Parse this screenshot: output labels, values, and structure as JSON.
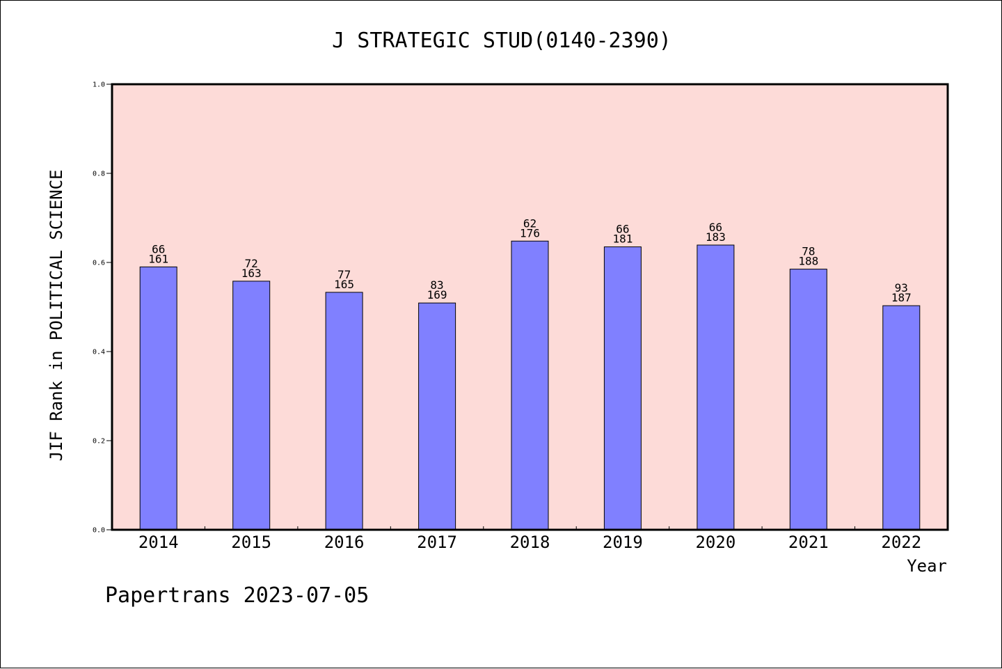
{
  "chart_data": {
    "type": "bar",
    "title": "J STRATEGIC STUD(0140-2390)",
    "xlabel": "Year",
    "ylabel": "JIF Rank in POLITICAL SCIENCE",
    "ylim": [
      0,
      1.0
    ],
    "yticks": [
      "0.0",
      "0.2",
      "0.4",
      "0.6",
      "0.8",
      "1.0"
    ],
    "ytick_values": [
      0.0,
      0.2,
      0.4,
      0.6,
      0.8,
      1.0
    ],
    "categories": [
      "2014",
      "2015",
      "2016",
      "2017",
      "2018",
      "2019",
      "2020",
      "2021",
      "2022"
    ],
    "values": [
      0.59,
      0.558,
      0.533,
      0.509,
      0.648,
      0.635,
      0.639,
      0.585,
      0.503
    ],
    "data_labels": [
      {
        "rank": "66",
        "total": "161"
      },
      {
        "rank": "72",
        "total": "163"
      },
      {
        "rank": "77",
        "total": "165"
      },
      {
        "rank": "83",
        "total": "169"
      },
      {
        "rank": "62",
        "total": "176"
      },
      {
        "rank": "66",
        "total": "181"
      },
      {
        "rank": "66",
        "total": "183"
      },
      {
        "rank": "78",
        "total": "188"
      },
      {
        "rank": "93",
        "total": "187"
      }
    ],
    "grid": false,
    "colors": {
      "bar": "#8080ff",
      "plot_background": "#fddbd8",
      "axis": "#000000"
    }
  },
  "footer": "Papertrans 2023-07-05"
}
